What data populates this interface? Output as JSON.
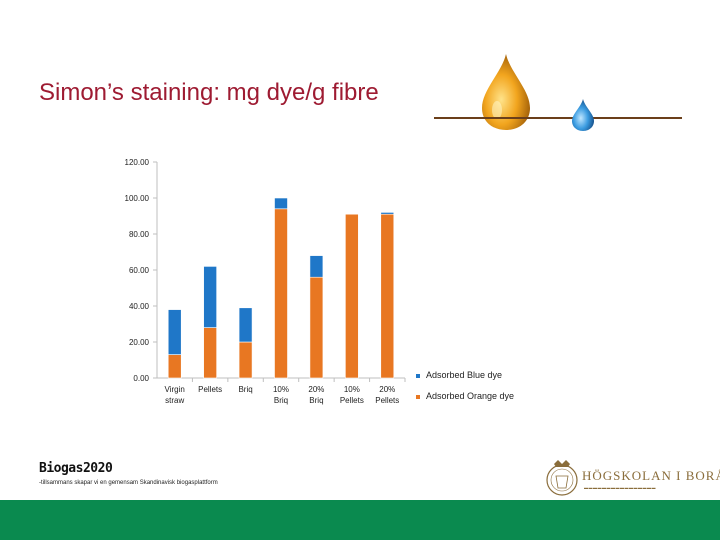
{
  "slide": {
    "title": "Simon’s staining: mg dye/g fibre"
  },
  "chart_data": {
    "type": "bar",
    "stacked": true,
    "categories": [
      [
        "Virgin",
        "straw"
      ],
      [
        "Pellets"
      ],
      [
        "Briq"
      ],
      [
        "10%",
        "Briq"
      ],
      [
        "20%",
        "Briq"
      ],
      [
        "10%",
        "Pellets"
      ],
      [
        "20%",
        "Pellets"
      ]
    ],
    "series": [
      {
        "name": "Adsorbed Orange dye",
        "color": "#e87722",
        "values": [
          13,
          28,
          20,
          94,
          56,
          91,
          91
        ]
      },
      {
        "name": "Adsorbed Blue dye",
        "color": "#1f77c8",
        "values": [
          25,
          34,
          19,
          6,
          12,
          0,
          1
        ]
      }
    ],
    "ylim": [
      0,
      120
    ],
    "yticks": [
      "0.00",
      "20.00",
      "40.00",
      "60.00",
      "80.00",
      "100.00",
      "120.00"
    ],
    "legend": "right"
  },
  "footer": {
    "brand": "Biogas2020",
    "tagline": "-tillsammans skapar vi en gemensam Skandinavisk biogasplattform",
    "school_name": "HÖGSKOLAN I BORÅS"
  }
}
